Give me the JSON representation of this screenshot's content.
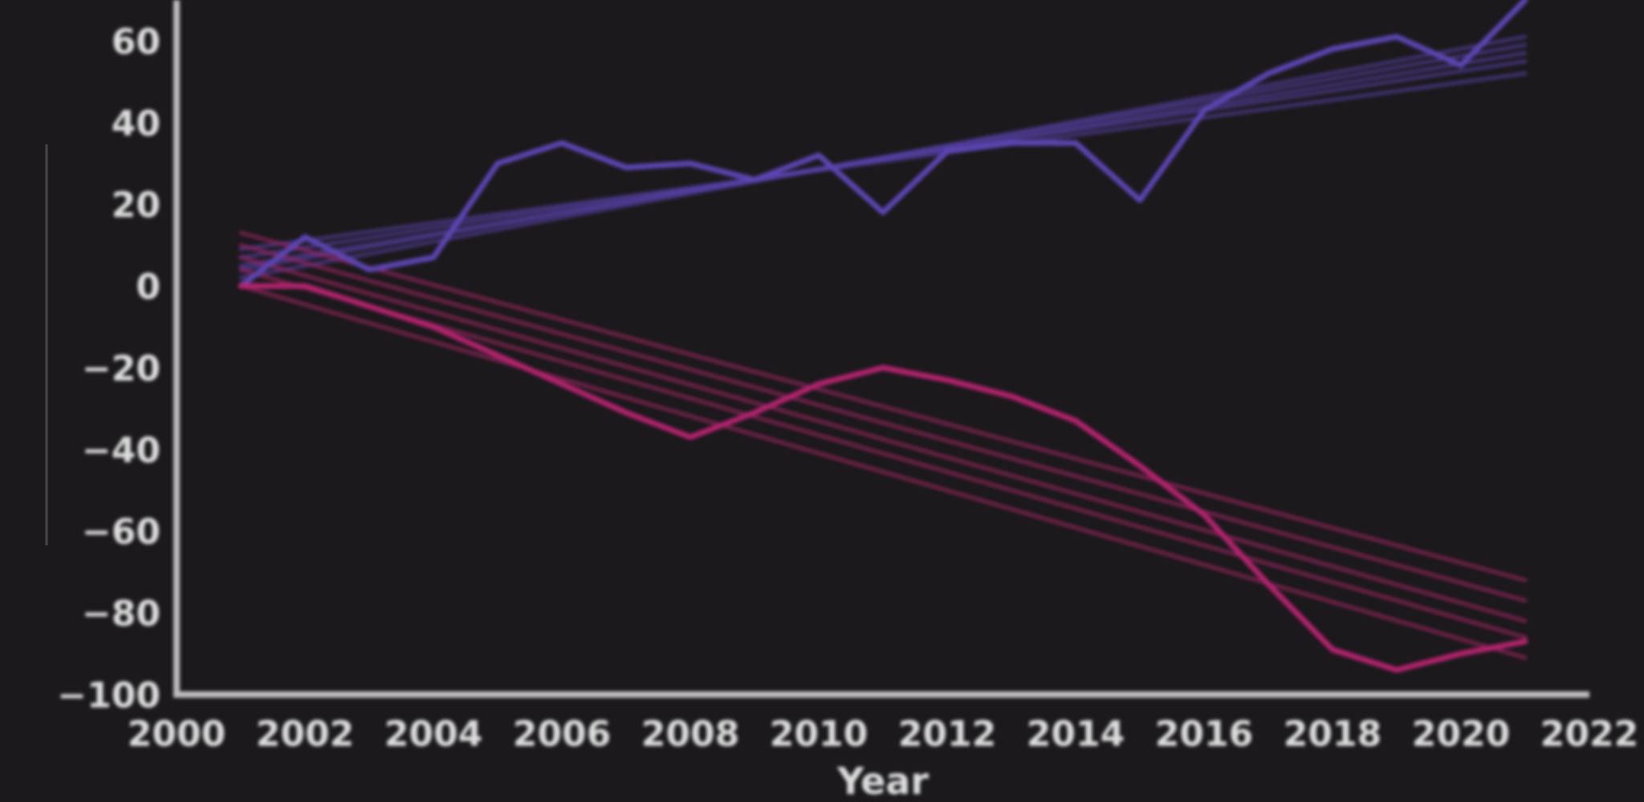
{
  "chart_data": {
    "type": "line",
    "title": "",
    "xlabel": "Year",
    "ylabel": "",
    "xlim": [
      2000,
      2022
    ],
    "ylim": [
      -100,
      70
    ],
    "x_ticks": [
      2000,
      2002,
      2004,
      2006,
      2008,
      2010,
      2012,
      2014,
      2016,
      2018,
      2020,
      2022
    ],
    "y_ticks": [
      -100,
      -80,
      -60,
      -40,
      -20,
      0,
      20,
      40,
      60
    ],
    "x_tick_labels": [
      "2000",
      "2002",
      "2004",
      "2006",
      "2008",
      "2010",
      "2012",
      "2014",
      "2016",
      "2018",
      "2020",
      "2022"
    ],
    "y_tick_labels": [
      "−100",
      "−80",
      "−60",
      "−40",
      "−20",
      "0",
      "20",
      "40",
      "60"
    ],
    "grid": false,
    "legend": "none",
    "x": [
      2001,
      2002,
      2003,
      2004,
      2005,
      2006,
      2007,
      2008,
      2009,
      2010,
      2011,
      2012,
      2013,
      2014,
      2015,
      2016,
      2017,
      2018,
      2019,
      2020,
      2021
    ],
    "series": [
      {
        "color": "#5b44b0",
        "trend_color": "#5b44b0",
        "values": [
          0,
          12,
          4,
          7,
          30,
          35,
          29,
          30,
          26,
          32,
          18,
          33,
          35,
          35,
          21,
          43,
          52,
          58,
          61,
          54,
          70
        ],
        "trend_bundle": [
          {
            "start": 9,
            "end": 52
          },
          {
            "start": 7,
            "end": 55
          },
          {
            "start": 5,
            "end": 57
          },
          {
            "start": 4,
            "end": 59
          },
          {
            "start": 2,
            "end": 61
          }
        ]
      },
      {
        "color": "#b0246c",
        "trend_color": "#b0246c",
        "values": [
          0,
          0,
          -5,
          -10,
          -17,
          -24,
          -31,
          -37,
          -31,
          -24,
          -20,
          -23,
          -27,
          -33,
          -44,
          -56,
          -73,
          -89,
          -94,
          -90,
          -87
        ],
        "trend_bundle": [
          {
            "start": 13,
            "end": -72
          },
          {
            "start": 10,
            "end": -77
          },
          {
            "start": 7,
            "end": -82
          },
          {
            "start": 4,
            "end": -86
          },
          {
            "start": 0,
            "end": -91
          }
        ]
      }
    ],
    "trend_x": [
      2001,
      2021
    ]
  }
}
